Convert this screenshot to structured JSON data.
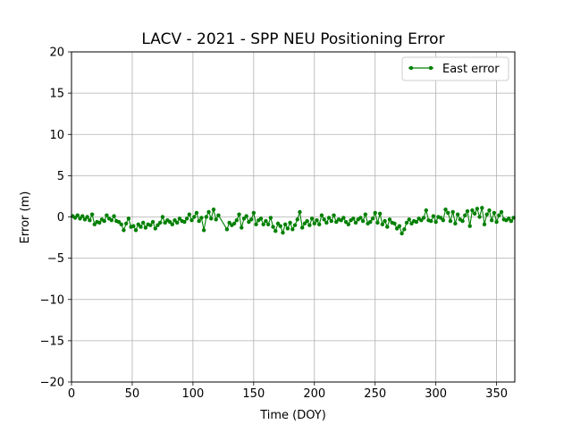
{
  "chart_data": {
    "type": "line",
    "title": "LACV - 2021 - SPP NEU Positioning Error",
    "xlabel": "Time (DOY)",
    "ylabel": "Error (m)",
    "xlim": [
      0,
      365
    ],
    "ylim": [
      -20,
      20
    ],
    "xticks": [
      0,
      50,
      100,
      150,
      200,
      250,
      300,
      350
    ],
    "yticks": [
      -20,
      -15,
      -10,
      -5,
      0,
      5,
      10,
      15,
      20
    ],
    "grid": true,
    "legend": {
      "location": "top-right",
      "entries": [
        "East error"
      ]
    },
    "series": [
      {
        "name": "East error",
        "color": "#008000",
        "marker": "circle",
        "points": [
          [
            1,
            0.1
          ],
          [
            3,
            -0.1
          ],
          [
            5,
            0.2
          ],
          [
            7,
            -0.2
          ],
          [
            9,
            0.1
          ],
          [
            11,
            -0.3
          ],
          [
            13,
            0.0
          ],
          [
            15,
            -0.4
          ],
          [
            17,
            0.3
          ],
          [
            19,
            -0.9
          ],
          [
            21,
            -0.6
          ],
          [
            23,
            -0.7
          ],
          [
            25,
            -0.3
          ],
          [
            27,
            -0.5
          ],
          [
            29,
            0.2
          ],
          [
            31,
            -0.2
          ],
          [
            33,
            -0.4
          ],
          [
            35,
            0.1
          ],
          [
            37,
            -0.5
          ],
          [
            39,
            -0.6
          ],
          [
            41,
            -0.9
          ],
          [
            43,
            -1.6
          ],
          [
            45,
            -0.8
          ],
          [
            47,
            -0.2
          ],
          [
            49,
            -1.2
          ],
          [
            51,
            -1.1
          ],
          [
            53,
            -1.6
          ],
          [
            55,
            -0.9
          ],
          [
            57,
            -1.2
          ],
          [
            59,
            -0.7
          ],
          [
            61,
            -1.3
          ],
          [
            63,
            -0.9
          ],
          [
            65,
            -1.0
          ],
          [
            67,
            -0.6
          ],
          [
            69,
            -1.4
          ],
          [
            71,
            -1.0
          ],
          [
            73,
            -0.7
          ],
          [
            75,
            0.0
          ],
          [
            77,
            -0.7
          ],
          [
            79,
            -0.4
          ],
          [
            81,
            -0.6
          ],
          [
            83,
            -0.9
          ],
          [
            85,
            -0.4
          ],
          [
            87,
            -0.7
          ],
          [
            89,
            -0.2
          ],
          [
            91,
            -0.5
          ],
          [
            93,
            -0.6
          ],
          [
            95,
            -0.2
          ],
          [
            97,
            0.3
          ],
          [
            99,
            -0.4
          ],
          [
            101,
            0.0
          ],
          [
            103,
            0.5
          ],
          [
            105,
            -0.5
          ],
          [
            107,
            -0.1
          ],
          [
            109,
            -1.6
          ],
          [
            111,
            0.0
          ],
          [
            113,
            0.6
          ],
          [
            115,
            -0.2
          ],
          [
            117,
            0.9
          ],
          [
            119,
            -0.3
          ],
          [
            121,
            0.2
          ],
          [
            128,
            -1.5
          ],
          [
            130,
            -0.7
          ],
          [
            132,
            -1.0
          ],
          [
            134,
            -0.8
          ],
          [
            136,
            -0.4
          ],
          [
            138,
            0.3
          ],
          [
            140,
            -1.3
          ],
          [
            142,
            -0.2
          ],
          [
            144,
            0.1
          ],
          [
            146,
            -0.6
          ],
          [
            148,
            -0.3
          ],
          [
            150,
            0.5
          ],
          [
            152,
            -0.9
          ],
          [
            154,
            -0.4
          ],
          [
            156,
            -0.2
          ],
          [
            158,
            -0.9
          ],
          [
            160,
            -0.5
          ],
          [
            162,
            -0.9
          ],
          [
            164,
            -0.1
          ],
          [
            166,
            -1.2
          ],
          [
            168,
            -1.7
          ],
          [
            170,
            -0.8
          ],
          [
            172,
            -1.1
          ],
          [
            174,
            -1.9
          ],
          [
            176,
            -0.9
          ],
          [
            178,
            -1.4
          ],
          [
            180,
            -0.7
          ],
          [
            182,
            -1.5
          ],
          [
            184,
            -1.0
          ],
          [
            186,
            -0.3
          ],
          [
            188,
            0.6
          ],
          [
            190,
            -1.3
          ],
          [
            192,
            -0.8
          ],
          [
            194,
            -0.5
          ],
          [
            196,
            -1.0
          ],
          [
            198,
            -0.2
          ],
          [
            200,
            -0.8
          ],
          [
            202,
            -0.4
          ],
          [
            204,
            -0.9
          ],
          [
            206,
            0.2
          ],
          [
            208,
            -0.3
          ],
          [
            210,
            -0.7
          ],
          [
            212,
            -0.1
          ],
          [
            214,
            -0.5
          ],
          [
            216,
            0.2
          ],
          [
            218,
            -0.6
          ],
          [
            220,
            -0.3
          ],
          [
            222,
            -0.4
          ],
          [
            224,
            -0.1
          ],
          [
            226,
            -0.6
          ],
          [
            228,
            -0.9
          ],
          [
            230,
            -0.4
          ],
          [
            232,
            -0.2
          ],
          [
            234,
            -0.7
          ],
          [
            236,
            -0.3
          ],
          [
            238,
            -0.1
          ],
          [
            240,
            -0.5
          ],
          [
            242,
            0.3
          ],
          [
            244,
            -0.8
          ],
          [
            246,
            -0.6
          ],
          [
            248,
            -0.2
          ],
          [
            250,
            0.5
          ],
          [
            252,
            -0.7
          ],
          [
            254,
            0.4
          ],
          [
            256,
            -0.9
          ],
          [
            258,
            -0.5
          ],
          [
            260,
            -1.2
          ],
          [
            262,
            -0.3
          ],
          [
            264,
            -0.7
          ],
          [
            266,
            -0.8
          ],
          [
            268,
            -1.4
          ],
          [
            270,
            -1.1
          ],
          [
            272,
            -2.0
          ],
          [
            274,
            -1.5
          ],
          [
            276,
            -0.7
          ],
          [
            278,
            -0.3
          ],
          [
            280,
            -0.8
          ],
          [
            282,
            -0.5
          ],
          [
            284,
            -0.6
          ],
          [
            286,
            -0.2
          ],
          [
            288,
            -0.4
          ],
          [
            290,
            -0.1
          ],
          [
            292,
            0.8
          ],
          [
            294,
            -0.4
          ],
          [
            296,
            -0.5
          ],
          [
            298,
            0.1
          ],
          [
            300,
            -0.6
          ],
          [
            302,
            0.0
          ],
          [
            304,
            -0.1
          ],
          [
            306,
            -0.4
          ],
          [
            308,
            0.9
          ],
          [
            310,
            0.5
          ],
          [
            312,
            -0.5
          ],
          [
            314,
            0.6
          ],
          [
            316,
            -0.8
          ],
          [
            318,
            0.3
          ],
          [
            320,
            -0.3
          ],
          [
            322,
            -0.5
          ],
          [
            324,
            0.2
          ],
          [
            326,
            0.7
          ],
          [
            328,
            -1.1
          ],
          [
            330,
            0.8
          ],
          [
            332,
            0.4
          ],
          [
            334,
            1.0
          ],
          [
            336,
            0.0
          ],
          [
            338,
            1.1
          ],
          [
            340,
            -0.9
          ],
          [
            342,
            0.3
          ],
          [
            344,
            0.8
          ],
          [
            346,
            -0.4
          ],
          [
            348,
            0.5
          ],
          [
            350,
            -0.6
          ],
          [
            352,
            0.2
          ],
          [
            354,
            0.6
          ],
          [
            356,
            -0.3
          ],
          [
            358,
            -0.4
          ],
          [
            360,
            -0.2
          ],
          [
            362,
            -0.5
          ],
          [
            364,
            -0.1
          ]
        ]
      }
    ]
  }
}
